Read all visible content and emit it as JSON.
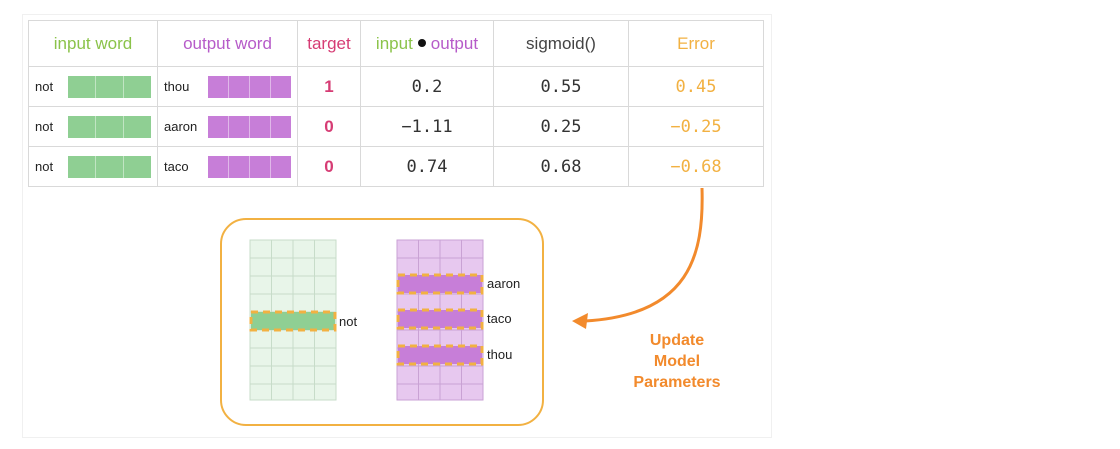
{
  "table": {
    "headers": [
      "input word",
      "output word",
      "target",
      "input",
      "output",
      "sigmoid()",
      "Error"
    ],
    "rows": [
      {
        "input": "not",
        "output": "thou",
        "target": "1",
        "dot": "0.2",
        "sigmoid": "0.55",
        "error": "0.45"
      },
      {
        "input": "not",
        "output": "aaron",
        "target": "0",
        "dot": "−1.11",
        "sigmoid": "0.25",
        "error": "−0.25"
      },
      {
        "input": "not",
        "output": "taco",
        "target": "0",
        "dot": "0.74",
        "sigmoid": "0.68",
        "error": "−0.68"
      }
    ]
  },
  "matrices": {
    "embedding_label": "not",
    "context_labels": [
      "aaron",
      "taco",
      "thou"
    ]
  },
  "update_label": [
    "Update",
    "Model",
    "Parameters"
  ],
  "colors": {
    "input_green": "#8fcf93",
    "output_purple": "#c77ed8",
    "target_pink": "#d63c74",
    "error_orange": "#f2b142",
    "arrow_orange": "#f28a2c"
  }
}
